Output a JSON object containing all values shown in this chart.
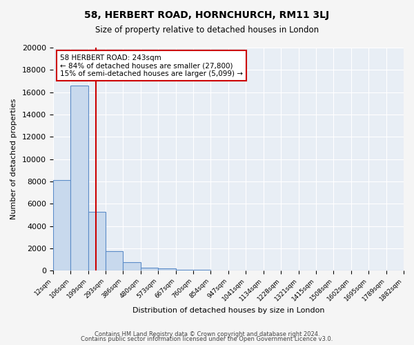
{
  "title": "58, HERBERT ROAD, HORNCHURCH, RM11 3LJ",
  "subtitle": "Size of property relative to detached houses in London",
  "xlabel": "Distribution of detached houses by size in London",
  "ylabel": "Number of detached properties",
  "bar_values": [
    8100,
    16600,
    5300,
    1750,
    750,
    280,
    180,
    100,
    80,
    0,
    0,
    0,
    0,
    0,
    0,
    0,
    0,
    0,
    0,
    0
  ],
  "bin_labels": [
    "12sqm",
    "106sqm",
    "199sqm",
    "293sqm",
    "386sqm",
    "480sqm",
    "573sqm",
    "667sqm",
    "760sqm",
    "854sqm",
    "947sqm",
    "1041sqm",
    "1134sqm",
    "1228sqm",
    "1321sqm",
    "1415sqm",
    "1508sqm",
    "1602sqm",
    "1695sqm",
    "1789sqm",
    "1882sqm"
  ],
  "ylim": [
    0,
    20000
  ],
  "yticks": [
    0,
    2000,
    4000,
    6000,
    8000,
    10000,
    12000,
    14000,
    16000,
    18000,
    20000
  ],
  "bar_color": "#c8d9ed",
  "bar_edge_color": "#5b8cc8",
  "vline_color": "#cc0000",
  "annotation_text": "58 HERBERT ROAD: 243sqm\n← 84% of detached houses are smaller (27,800)\n15% of semi-detached houses are larger (5,099) →",
  "annotation_box_color": "#ffffff",
  "annotation_box_edge": "#cc0000",
  "bg_color": "#e8eef5",
  "fig_bg_color": "#f5f5f5",
  "footer1": "Contains HM Land Registry data © Crown copyright and database right 2024.",
  "footer2": "Contains public sector information licensed under the Open Government Licence v3.0."
}
